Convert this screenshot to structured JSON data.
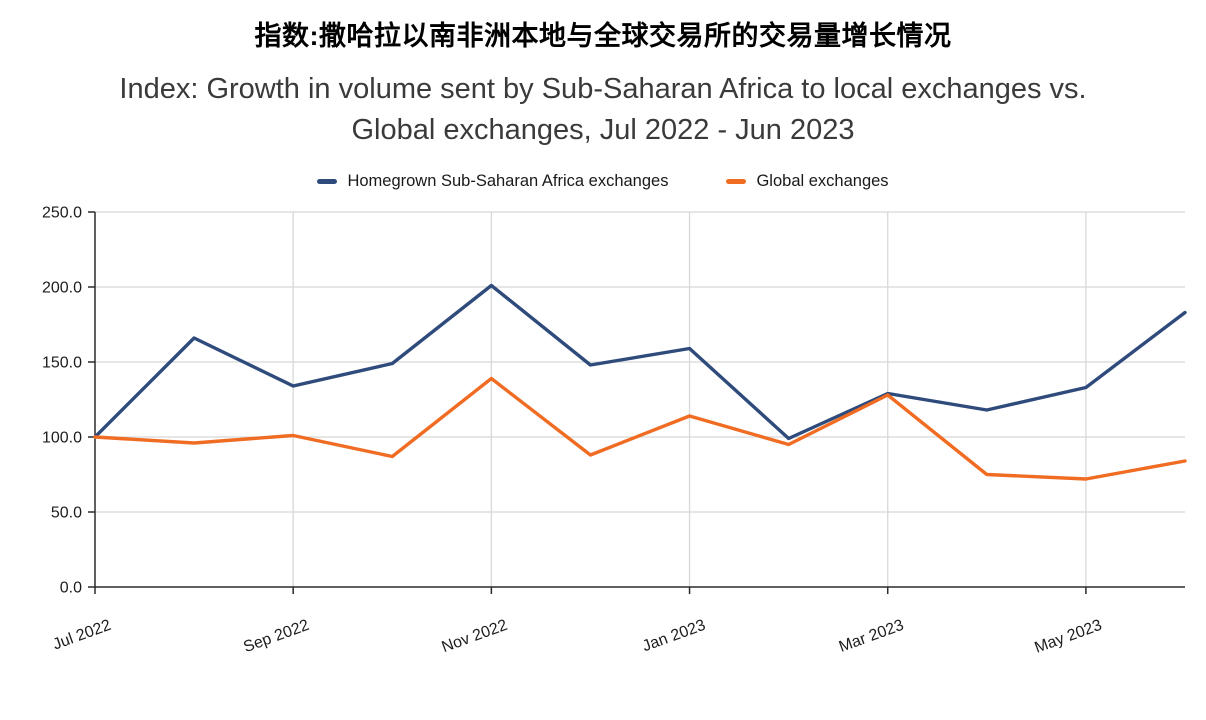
{
  "title_cn": "指数:撒哈拉以南非洲本地与全球交易所的交易量增长情况",
  "title_en": {
    "line1": "Index: Growth in volume sent by Sub-Saharan Africa to local exchanges vs.",
    "line2": "Global exchanges, Jul 2022 - Jun 2023"
  },
  "colors": {
    "navy": "#2f4b7c",
    "orange": "#f06c23",
    "grid": "#d8d8d8",
    "axis": "#2b2b2b",
    "tick_text": "#1c1c1c"
  },
  "chart_data": {
    "type": "line",
    "x": [
      "Jul 2022",
      "Aug 2022",
      "Sep 2022",
      "Oct 2022",
      "Nov 2022",
      "Dec 2022",
      "Jan 2023",
      "Feb 2023",
      "Mar 2023",
      "Apr 2023",
      "May 2023",
      "Jun 2023"
    ],
    "x_tick_indices": [
      0,
      2,
      4,
      6,
      8,
      10
    ],
    "x_tick_labels": [
      "Jul 2022",
      "Sep 2022",
      "Nov 2022",
      "Jan 2023",
      "Mar 2023",
      "May 2023"
    ],
    "series": [
      {
        "name": "Homegrown Sub-Saharan Africa exchanges",
        "color": "#2f4b7c",
        "values": [
          100,
          166,
          134,
          149,
          201,
          148,
          159,
          99,
          129,
          118,
          133,
          183
        ]
      },
      {
        "name": "Global exchanges",
        "color": "#f06c23",
        "values": [
          100,
          96,
          101,
          87,
          139,
          88,
          114,
          95,
          128,
          75,
          72,
          84
        ]
      }
    ],
    "ylim": [
      0,
      250
    ],
    "y_ticks": [
      0,
      50,
      100,
      150,
      200,
      250
    ],
    "y_tick_labels": [
      "0.0",
      "50.0",
      "100.0",
      "150.0",
      "200.0",
      "250.0"
    ],
    "grid": true,
    "legend_position": "top",
    "x_label_rotation_deg": -20
  }
}
